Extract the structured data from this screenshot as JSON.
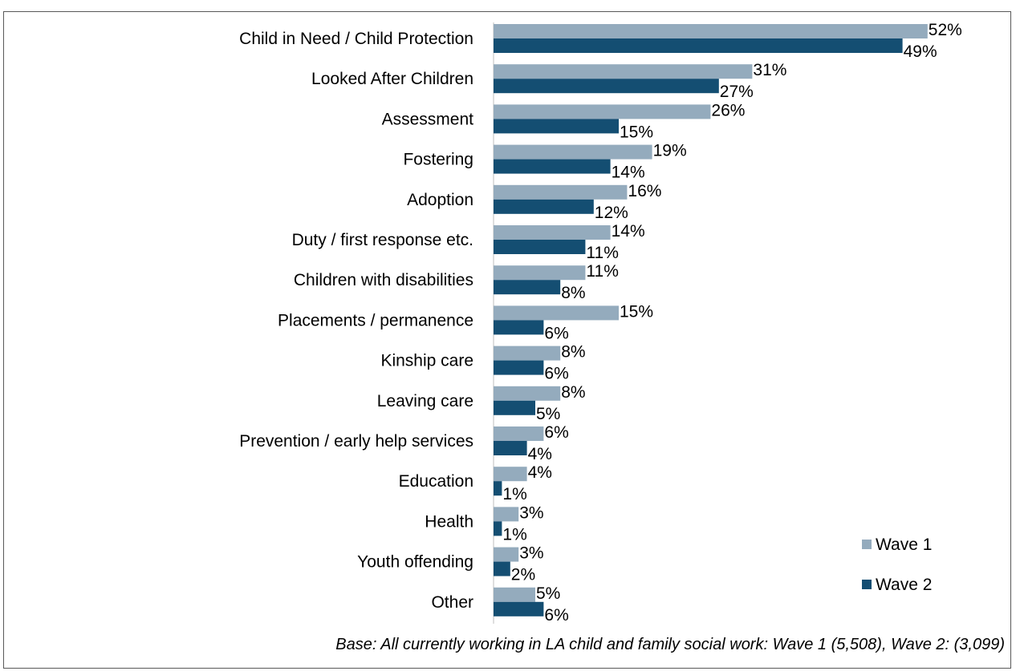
{
  "chart_data": {
    "type": "bar",
    "orientation": "horizontal",
    "categories": [
      "Child in Need / Child Protection",
      "Looked After Children",
      "Assessment",
      "Fostering",
      "Adoption",
      "Duty / first response etc.",
      "Children with disabilities",
      "Placements / permanence",
      "Kinship care",
      "Leaving care",
      "Prevention / early help services",
      "Education",
      "Health",
      "Youth offending",
      "Other"
    ],
    "series": [
      {
        "name": "Wave 1",
        "color": "#94abbd",
        "values": [
          52,
          31,
          26,
          19,
          16,
          14,
          11,
          15,
          8,
          8,
          6,
          4,
          3,
          3,
          5
        ]
      },
      {
        "name": "Wave 2",
        "color": "#144e72",
        "values": [
          49,
          27,
          15,
          14,
          12,
          11,
          8,
          6,
          6,
          5,
          4,
          1,
          1,
          2,
          6
        ]
      }
    ],
    "value_suffix": "%",
    "xlim": [
      0,
      55
    ],
    "grid": false,
    "legend_position": "bottom-right"
  },
  "footnote": "Base: All currently working in LA child and family social work: Wave 1 (5,508), Wave 2: (3,099)"
}
